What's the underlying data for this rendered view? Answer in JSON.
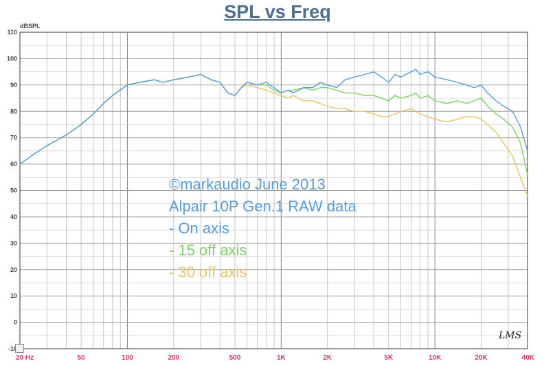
{
  "chart_data": {
    "type": "line",
    "title": "SPL vs Freq",
    "ylabel": "dBSPL",
    "xlabel": "",
    "x_scale": "log",
    "xlim": [
      20,
      40000
    ],
    "ylim": [
      -10,
      110
    ],
    "grid": true,
    "x_ticks": [
      {
        "value": 20,
        "label": "20 Hz"
      },
      {
        "value": 50,
        "label": "50"
      },
      {
        "value": 100,
        "label": "100"
      },
      {
        "value": 200,
        "label": "200"
      },
      {
        "value": 500,
        "label": "500"
      },
      {
        "value": 1000,
        "label": "1K"
      },
      {
        "value": 2000,
        "label": "2K"
      },
      {
        "value": 5000,
        "label": "5K"
      },
      {
        "value": 10000,
        "label": "10K"
      },
      {
        "value": 20000,
        "label": "20K"
      },
      {
        "value": 40000,
        "label": "40K"
      }
    ],
    "y_ticks": [
      -10,
      0,
      10,
      20,
      30,
      40,
      50,
      60,
      70,
      80,
      90,
      100,
      110
    ],
    "y_tick_labels": [
      "-10",
      "0",
      "10",
      "20",
      "30",
      "40",
      "50",
      "60",
      "70",
      "80",
      "90",
      "100",
      "110"
    ],
    "annotations": [
      {
        "text": "©markaudio June 2013",
        "color": "#5b9bd5"
      },
      {
        "text": "Alpair 10P Gen.1 RAW data",
        "color": "#5b9bd5"
      },
      {
        "text": " - On axis",
        "color": "#5b9bd5"
      },
      {
        "text": " - 15 off axis",
        "color": "#7fcf6a"
      },
      {
        "text": " - 30 off axis",
        "color": "#e8c36a"
      }
    ],
    "watermark": "LMS",
    "series": [
      {
        "name": "On axis",
        "color": "#5b9bd5",
        "x": [
          20,
          25,
          30,
          40,
          50,
          60,
          70,
          80,
          100,
          120,
          150,
          170,
          200,
          250,
          300,
          350,
          400,
          450,
          500,
          550,
          600,
          700,
          800,
          900,
          1000,
          1100,
          1200,
          1400,
          1600,
          1800,
          2000,
          2300,
          2600,
          3000,
          3500,
          4000,
          4500,
          5000,
          5500,
          6000,
          7000,
          7500,
          8000,
          9000,
          10000,
          12000,
          14000,
          16000,
          18000,
          20000,
          22000,
          25000,
          28000,
          32000,
          36000,
          40000
        ],
        "y": [
          60,
          64,
          67,
          71,
          75,
          79,
          83,
          86,
          90,
          91,
          92,
          91,
          92,
          93,
          94,
          92,
          91,
          87,
          86,
          89,
          91,
          90,
          91,
          89,
          87,
          88,
          87,
          89,
          89,
          91,
          90,
          89,
          92,
          93,
          94,
          95,
          93,
          91,
          94,
          93,
          95,
          96,
          94,
          95,
          93,
          92,
          91,
          90,
          89,
          90,
          87,
          84,
          82,
          80,
          74,
          65
        ]
      },
      {
        "name": "15 off axis",
        "color": "#7fcf6a",
        "x": [
          20,
          25,
          30,
          40,
          50,
          60,
          70,
          80,
          100,
          120,
          150,
          170,
          200,
          250,
          300,
          350,
          400,
          450,
          500,
          550,
          600,
          700,
          800,
          900,
          1000,
          1100,
          1200,
          1400,
          1600,
          1800,
          2000,
          2300,
          2600,
          3000,
          3500,
          4000,
          4500,
          5000,
          5500,
          6000,
          7000,
          7500,
          8000,
          9000,
          10000,
          12000,
          14000,
          16000,
          18000,
          20000,
          22000,
          25000,
          28000,
          32000,
          36000,
          40000
        ],
        "y": [
          60,
          64,
          67,
          71,
          75,
          79,
          83,
          86,
          90,
          91,
          92,
          91,
          92,
          93,
          94,
          92,
          91,
          87,
          86,
          89,
          91,
          90,
          90,
          88,
          87,
          88,
          88,
          89,
          88,
          89,
          89,
          88,
          87,
          87,
          86,
          86,
          85,
          84,
          86,
          85,
          86,
          87,
          85,
          86,
          84,
          83,
          84,
          83,
          84,
          85,
          82,
          79,
          77,
          74,
          68,
          56
        ]
      },
      {
        "name": "30 off axis",
        "color": "#e8c36a",
        "x": [
          20,
          25,
          30,
          40,
          50,
          60,
          70,
          80,
          100,
          120,
          150,
          170,
          200,
          250,
          300,
          350,
          400,
          450,
          500,
          550,
          600,
          700,
          800,
          900,
          1000,
          1100,
          1200,
          1400,
          1600,
          1800,
          2000,
          2300,
          2600,
          3000,
          3500,
          4000,
          4500,
          5000,
          5500,
          6000,
          7000,
          7500,
          8000,
          9000,
          10000,
          12000,
          14000,
          16000,
          18000,
          20000,
          22000,
          25000,
          28000,
          32000,
          36000,
          40000
        ],
        "y": [
          60,
          64,
          67,
          71,
          75,
          79,
          83,
          86,
          90,
          91,
          92,
          91,
          92,
          93,
          94,
          92,
          91,
          87,
          86,
          89,
          90,
          89,
          88,
          87,
          86,
          85,
          86,
          84,
          84,
          83,
          82,
          81,
          81,
          80,
          80,
          79,
          78,
          78,
          79,
          80,
          81,
          80,
          79,
          78,
          77,
          76,
          77,
          78,
          78,
          77,
          75,
          72,
          68,
          63,
          55,
          48
        ]
      }
    ]
  }
}
